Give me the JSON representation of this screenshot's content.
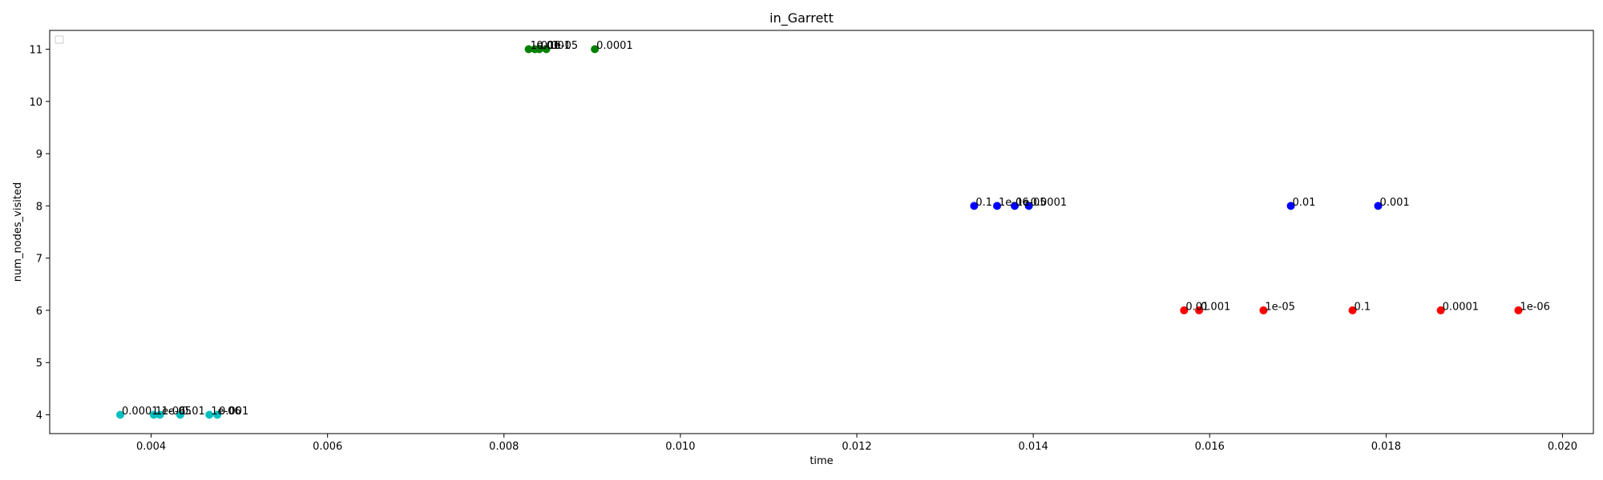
{
  "chart_data": {
    "type": "scatter",
    "title": "in_Garrett",
    "xlabel": "time",
    "ylabel": "num_nodes_visited",
    "xlim": [
      0.00285,
      0.02035
    ],
    "ylim": [
      3.64,
      11.36
    ],
    "xticks": [
      0.004,
      0.006,
      0.008,
      0.01,
      0.012,
      0.014,
      0.016,
      0.018,
      0.02
    ],
    "xtick_labels": [
      "0.004",
      "0.006",
      "0.008",
      "0.010",
      "0.012",
      "0.014",
      "0.016",
      "0.018",
      "0.020"
    ],
    "yticks": [
      4,
      5,
      6,
      7,
      8,
      9,
      10,
      11
    ],
    "ytick_labels": [
      "4",
      "5",
      "6",
      "7",
      "8",
      "9",
      "10",
      "11"
    ],
    "grid": false,
    "legend": {
      "position": "upper-left",
      "entries": []
    },
    "series": [
      {
        "color": "#00bfbf",
        "points": [
          {
            "x": 0.00365,
            "y": 4,
            "label": "0.0001"
          },
          {
            "x": 0.00403,
            "y": 4,
            "label": "1e-06"
          },
          {
            "x": 0.0041,
            "y": 4,
            "label": "1e-05"
          },
          {
            "x": 0.00433,
            "y": 4,
            "label": "0.01"
          },
          {
            "x": 0.00466,
            "y": 4,
            "label": "1e-06"
          },
          {
            "x": 0.00475,
            "y": 4,
            "label": "0.001"
          }
        ]
      },
      {
        "color": "#008000",
        "points": [
          {
            "x": 0.00828,
            "y": 11,
            "label": "1e-06"
          },
          {
            "x": 0.00835,
            "y": 11,
            "label": "0.01"
          },
          {
            "x": 0.0084,
            "y": 11,
            "label": "0.001"
          },
          {
            "x": 0.00848,
            "y": 11,
            "label": "1e-05"
          },
          {
            "x": 0.00903,
            "y": 11,
            "label": "0.0001"
          }
        ]
      },
      {
        "color": "#0000ff",
        "points": [
          {
            "x": 0.01333,
            "y": 8,
            "label": "0.1"
          },
          {
            "x": 0.01359,
            "y": 8,
            "label": "1e-06"
          },
          {
            "x": 0.01379,
            "y": 8,
            "label": "1e-05"
          },
          {
            "x": 0.01395,
            "y": 8,
            "label": "0.0001"
          },
          {
            "x": 0.01692,
            "y": 8,
            "label": "0.01"
          },
          {
            "x": 0.01791,
            "y": 8,
            "label": "0.001"
          }
        ]
      },
      {
        "color": "#ff0000",
        "points": [
          {
            "x": 0.01571,
            "y": 6,
            "label": "0.01"
          },
          {
            "x": 0.01588,
            "y": 6,
            "label": "0.001"
          },
          {
            "x": 0.01661,
            "y": 6,
            "label": "1e-05"
          },
          {
            "x": 0.01762,
            "y": 6,
            "label": "0.1"
          },
          {
            "x": 0.01862,
            "y": 6,
            "label": "0.0001"
          },
          {
            "x": 0.0195,
            "y": 6,
            "label": "1e-06"
          }
        ]
      }
    ]
  }
}
